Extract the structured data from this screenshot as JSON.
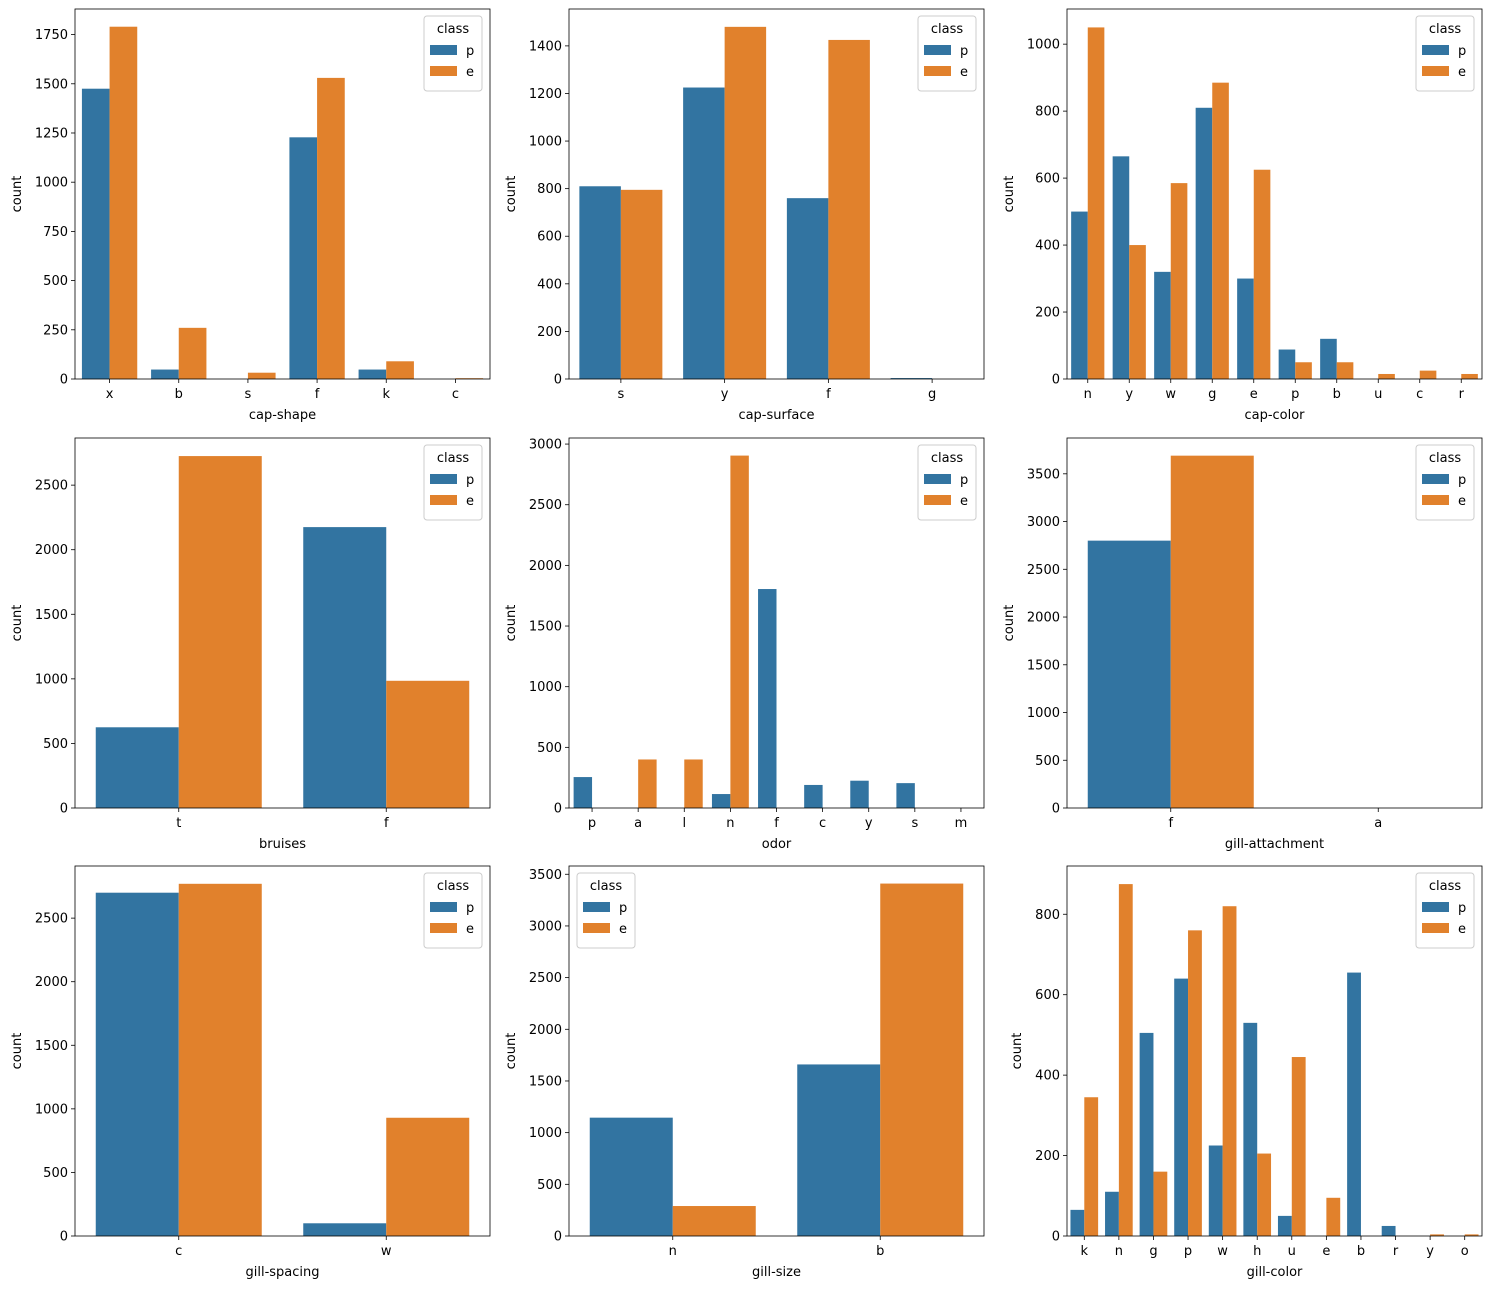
{
  "palette": {
    "p": "#3274a1",
    "e": "#e1812c"
  },
  "chart_data": [
    {
      "type": "bar",
      "xlabel": "cap-shape",
      "ylabel": "count",
      "categories": [
        "x",
        "b",
        "s",
        "f",
        "k",
        "c"
      ],
      "series": [
        {
          "name": "p",
          "values": [
            1475,
            48,
            0,
            1228,
            48,
            0
          ]
        },
        {
          "name": "e",
          "values": [
            1790,
            260,
            32,
            1530,
            90,
            4
          ]
        }
      ],
      "yticks": [
        0,
        250,
        500,
        750,
        1000,
        1250,
        1500,
        1750
      ],
      "ylim": [
        0,
        1880
      ],
      "legend": {
        "title": "class",
        "placement": "upper right"
      }
    },
    {
      "type": "bar",
      "xlabel": "cap-surface",
      "ylabel": "count",
      "categories": [
        "s",
        "y",
        "f",
        "g"
      ],
      "series": [
        {
          "name": "p",
          "values": [
            810,
            1225,
            760,
            4
          ]
        },
        {
          "name": "e",
          "values": [
            795,
            1480,
            1425,
            0
          ]
        }
      ],
      "yticks": [
        0,
        200,
        400,
        600,
        800,
        1000,
        1200,
        1400
      ],
      "ylim": [
        0,
        1555
      ],
      "legend": {
        "title": "class",
        "placement": "upper right"
      }
    },
    {
      "type": "bar",
      "xlabel": "cap-color",
      "ylabel": "count",
      "categories": [
        "n",
        "y",
        "w",
        "g",
        "e",
        "p",
        "b",
        "u",
        "c",
        "r"
      ],
      "series": [
        {
          "name": "p",
          "values": [
            500,
            665,
            320,
            810,
            300,
            88,
            120,
            0,
            0,
            0
          ]
        },
        {
          "name": "e",
          "values": [
            1050,
            400,
            585,
            885,
            625,
            50,
            50,
            15,
            25,
            15
          ]
        }
      ],
      "yticks": [
        0,
        200,
        400,
        600,
        800,
        1000
      ],
      "ylim": [
        0,
        1105
      ],
      "legend": {
        "title": "class",
        "placement": "upper right"
      }
    },
    {
      "type": "bar",
      "xlabel": "bruises",
      "ylabel": "count",
      "categories": [
        "t",
        "f"
      ],
      "series": [
        {
          "name": "p",
          "values": [
            625,
            2175
          ]
        },
        {
          "name": "e",
          "values": [
            2725,
            985
          ]
        }
      ],
      "yticks": [
        0,
        500,
        1000,
        1500,
        2000,
        2500
      ],
      "ylim": [
        0,
        2865
      ],
      "legend": {
        "title": "class",
        "placement": "upper right"
      }
    },
    {
      "type": "bar",
      "xlabel": "odor",
      "ylabel": "count",
      "categories": [
        "p",
        "a",
        "l",
        "n",
        "f",
        "c",
        "y",
        "s",
        "m"
      ],
      "series": [
        {
          "name": "p",
          "values": [
            255,
            0,
            0,
            115,
            1805,
            190,
            225,
            205,
            0
          ]
        },
        {
          "name": "e",
          "values": [
            0,
            400,
            400,
            2905,
            0,
            0,
            0,
            0,
            0
          ]
        }
      ],
      "yticks": [
        0,
        500,
        1000,
        1500,
        2000,
        2500,
        3000
      ],
      "ylim": [
        0,
        3050
      ],
      "legend": {
        "title": "class",
        "placement": "upper right"
      }
    },
    {
      "type": "bar",
      "xlabel": "gill-attachment",
      "ylabel": "count",
      "categories": [
        "f",
        "a"
      ],
      "series": [
        {
          "name": "p",
          "values": [
            2800,
            0
          ]
        },
        {
          "name": "e",
          "values": [
            3690,
            0
          ]
        }
      ],
      "yticks": [
        0,
        500,
        1000,
        1500,
        2000,
        2500,
        3000,
        3500
      ],
      "ylim": [
        0,
        3875
      ],
      "legend": {
        "title": "class",
        "placement": "upper right"
      }
    },
    {
      "type": "bar",
      "xlabel": "gill-spacing",
      "ylabel": "count",
      "categories": [
        "c",
        "w"
      ],
      "series": [
        {
          "name": "p",
          "values": [
            2700,
            100
          ]
        },
        {
          "name": "e",
          "values": [
            2770,
            930
          ]
        }
      ],
      "yticks": [
        0,
        500,
        1000,
        1500,
        2000,
        2500
      ],
      "ylim": [
        0,
        2910
      ],
      "legend": {
        "title": "class",
        "placement": "upper right"
      }
    },
    {
      "type": "bar",
      "xlabel": "gill-size",
      "ylabel": "count",
      "categories": [
        "n",
        "b"
      ],
      "series": [
        {
          "name": "p",
          "values": [
            1145,
            1660
          ]
        },
        {
          "name": "e",
          "values": [
            290,
            3410
          ]
        }
      ],
      "yticks": [
        0,
        500,
        1000,
        1500,
        2000,
        2500,
        3000,
        3500
      ],
      "ylim": [
        0,
        3580
      ],
      "legend": {
        "title": "class",
        "placement": "upper left"
      }
    },
    {
      "type": "bar",
      "xlabel": "gill-color",
      "ylabel": "count",
      "categories": [
        "k",
        "n",
        "g",
        "p",
        "w",
        "h",
        "u",
        "e",
        "b",
        "r",
        "y",
        "o"
      ],
      "series": [
        {
          "name": "p",
          "values": [
            65,
            110,
            505,
            640,
            225,
            530,
            50,
            0,
            655,
            25,
            0,
            0
          ]
        },
        {
          "name": "e",
          "values": [
            345,
            875,
            160,
            760,
            820,
            205,
            445,
            95,
            0,
            0,
            4,
            4
          ]
        }
      ],
      "yticks": [
        0,
        200,
        400,
        600,
        800
      ],
      "ylim": [
        0,
        920
      ],
      "legend": {
        "title": "class",
        "placement": "upper right"
      }
    }
  ]
}
